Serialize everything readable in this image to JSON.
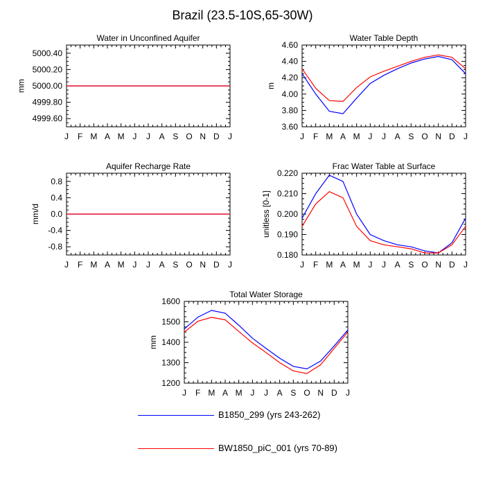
{
  "figure_title": "Brazil (23.5-10S,65-30W)",
  "colors": {
    "series1": "#0000ff",
    "series2": "#ff0000",
    "axis": "#000000"
  },
  "legend": [
    {
      "label": "B1850_299 (yrs 243-262)",
      "color": "#0000ff"
    },
    {
      "label": "BW1850_piC_001 (yrs 70-89)",
      "color": "#ff0000"
    }
  ],
  "chart_data": [
    {
      "id": "water-unconfined-aquifer",
      "type": "line",
      "title": "Water in Unconfined Aquifer",
      "ylabel": "mm",
      "xlabel": "",
      "categories": [
        "J",
        "F",
        "M",
        "A",
        "M",
        "J",
        "J",
        "A",
        "S",
        "O",
        "N",
        "D",
        "J"
      ],
      "ylim": [
        4999.5,
        5000.5
      ],
      "yticks": [
        4999.6,
        4999.8,
        5000.0,
        5000.2,
        5000.4
      ],
      "ytick_labels": [
        "4999.60",
        "4999.80",
        "5000.00",
        "5000.20",
        "5000.40"
      ],
      "series": [
        {
          "name": "B1850_299 (yrs 243-262)",
          "color": "#0000ff",
          "values": [
            5000,
            5000,
            5000,
            5000,
            5000,
            5000,
            5000,
            5000,
            5000,
            5000,
            5000,
            5000,
            5000
          ]
        },
        {
          "name": "BW1850_piC_001 (yrs 70-89)",
          "color": "#ff0000",
          "values": [
            5000,
            5000,
            5000,
            5000,
            5000,
            5000,
            5000,
            5000,
            5000,
            5000,
            5000,
            5000,
            5000
          ]
        }
      ]
    },
    {
      "id": "water-table-depth",
      "type": "line",
      "title": "Water Table Depth",
      "ylabel": "m",
      "xlabel": "",
      "categories": [
        "J",
        "F",
        "M",
        "A",
        "M",
        "J",
        "J",
        "A",
        "S",
        "O",
        "N",
        "D",
        "J"
      ],
      "ylim": [
        3.6,
        4.6
      ],
      "yticks": [
        3.6,
        3.8,
        4.0,
        4.2,
        4.4,
        4.6
      ],
      "ytick_labels": [
        "3.60",
        "3.80",
        "4.00",
        "4.20",
        "4.40",
        "4.60"
      ],
      "series": [
        {
          "name": "B1850_299 (yrs 243-262)",
          "color": "#0000ff",
          "values": [
            4.25,
            4.0,
            3.79,
            3.76,
            3.95,
            4.13,
            4.23,
            4.31,
            4.38,
            4.43,
            4.46,
            4.42,
            4.25
          ]
        },
        {
          "name": "BW1850_piC_001 (yrs 70-89)",
          "color": "#ff0000",
          "values": [
            4.31,
            4.07,
            3.92,
            3.91,
            4.08,
            4.21,
            4.28,
            4.34,
            4.4,
            4.45,
            4.48,
            4.45,
            4.31
          ]
        }
      ]
    },
    {
      "id": "aquifer-recharge-rate",
      "type": "line",
      "title": "Aquifer Recharge Rate",
      "ylabel": "mm/d",
      "xlabel": "",
      "categories": [
        "J",
        "F",
        "M",
        "A",
        "M",
        "J",
        "J",
        "A",
        "S",
        "O",
        "N",
        "D",
        "J"
      ],
      "ylim": [
        -1.0,
        1.0
      ],
      "yticks": [
        -0.8,
        -0.4,
        0.0,
        0.4,
        0.8
      ],
      "ytick_labels": [
        "-0.8",
        "-0.4",
        "0.0",
        "0.4",
        "0.8"
      ],
      "series": [
        {
          "name": "B1850_299 (yrs 243-262)",
          "color": "#0000ff",
          "values": [
            0,
            0,
            0,
            0,
            0,
            0,
            0,
            0,
            0,
            0,
            0,
            0,
            0
          ]
        },
        {
          "name": "BW1850_piC_001 (yrs 70-89)",
          "color": "#ff0000",
          "values": [
            0,
            0,
            0,
            0,
            0,
            0,
            0,
            0,
            0,
            0,
            0,
            0,
            0
          ]
        }
      ]
    },
    {
      "id": "frac-water-table-surface",
      "type": "line",
      "title": "Frac Water Table at Surface",
      "ylabel": "unitless [0-1]",
      "xlabel": "",
      "categories": [
        "J",
        "F",
        "M",
        "A",
        "M",
        "J",
        "J",
        "A",
        "S",
        "O",
        "N",
        "D",
        "J"
      ],
      "ylim": [
        0.18,
        0.22
      ],
      "yticks": [
        0.18,
        0.19,
        0.2,
        0.21,
        0.22
      ],
      "ytick_labels": [
        "0.180",
        "0.190",
        "0.200",
        "0.210",
        "0.220"
      ],
      "series": [
        {
          "name": "B1850_299 (yrs 243-262)",
          "color": "#0000ff",
          "values": [
            0.198,
            0.21,
            0.219,
            0.216,
            0.2,
            0.19,
            0.187,
            0.185,
            0.184,
            0.182,
            0.181,
            0.186,
            0.198
          ]
        },
        {
          "name": "BW1850_piC_001 (yrs 70-89)",
          "color": "#ff0000",
          "values": [
            0.194,
            0.205,
            0.211,
            0.208,
            0.194,
            0.187,
            0.185,
            0.184,
            0.183,
            0.181,
            0.181,
            0.185,
            0.194
          ]
        }
      ]
    },
    {
      "id": "total-water-storage",
      "type": "line",
      "title": "Total Water Storage",
      "ylabel": "mm",
      "xlabel": "",
      "categories": [
        "J",
        "F",
        "M",
        "A",
        "M",
        "J",
        "J",
        "A",
        "S",
        "O",
        "N",
        "D",
        "J"
      ],
      "ylim": [
        1200,
        1600
      ],
      "yticks": [
        1200,
        1300,
        1400,
        1500,
        1600
      ],
      "ytick_labels": [
        "1200",
        "1300",
        "1400",
        "1500",
        "1600"
      ],
      "series": [
        {
          "name": "B1850_299 (yrs 243-262)",
          "color": "#0000ff",
          "values": [
            1465,
            1523,
            1556,
            1542,
            1483,
            1420,
            1370,
            1322,
            1282,
            1270,
            1308,
            1382,
            1460
          ]
        },
        {
          "name": "BW1850_piC_001 (yrs 70-89)",
          "color": "#ff0000",
          "values": [
            1450,
            1503,
            1522,
            1510,
            1453,
            1397,
            1350,
            1300,
            1260,
            1247,
            1290,
            1370,
            1450
          ]
        }
      ]
    }
  ]
}
